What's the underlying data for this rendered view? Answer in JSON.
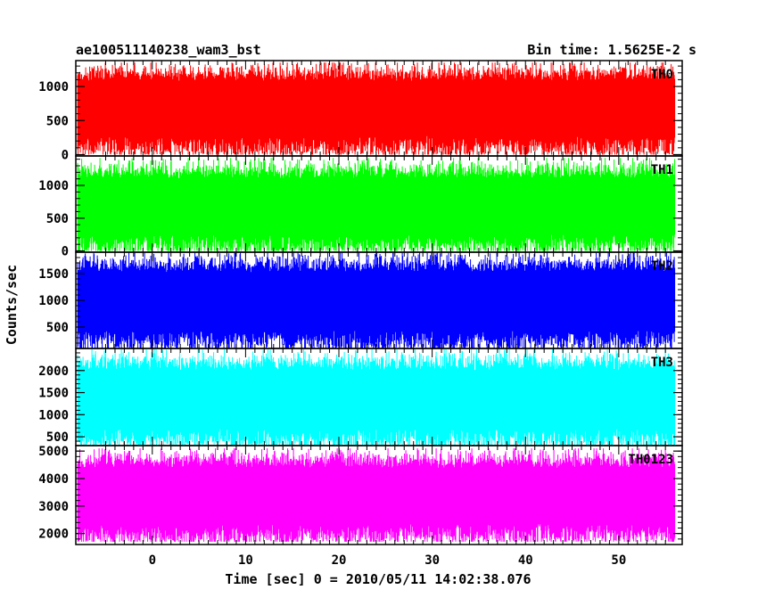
{
  "chart_data": {
    "type": "line",
    "title_left": "ae100511140238_wam3_bst",
    "title_right": "Bin time: 1.5625E-2 s",
    "xlabel": "Time [sec] 0 = 2010/05/11 14:02:38.076",
    "ylabel": "Counts/sec",
    "xlim": [
      -8.2,
      56.8
    ],
    "x_data_range": [
      -8.0,
      56.0
    ],
    "x_ticks": [
      0,
      10,
      20,
      30,
      40,
      50
    ],
    "x_tick_labels": [
      "0",
      "10",
      "20",
      "30",
      "40",
      "50"
    ],
    "grid": false,
    "panels": [
      {
        "name": "TH0",
        "color": "#ff0000",
        "ylim": [
          -20,
          1380
        ],
        "y_ticks": [
          0,
          500,
          1000
        ],
        "y_tick_labels": [
          "0",
          "500",
          "1000"
        ],
        "approx_min": 0,
        "approx_max": 1350,
        "approx_mean": 650
      },
      {
        "name": "TH1",
        "color": "#00ff00",
        "ylim": [
          -20,
          1450
        ],
        "y_ticks": [
          0,
          500,
          1000
        ],
        "y_tick_labels": [
          "0",
          "500",
          "1000"
        ],
        "approx_min": 0,
        "approx_max": 1420,
        "approx_mean": 650
      },
      {
        "name": "TH2",
        "color": "#0000ff",
        "ylim": [
          100,
          1900
        ],
        "y_ticks": [
          500,
          1000,
          1500
        ],
        "y_tick_labels": [
          "500",
          "1000",
          "1500"
        ],
        "approx_min": 100,
        "approx_max": 1900,
        "approx_mean": 950
      },
      {
        "name": "TH3",
        "color": "#00ffff",
        "ylim": [
          300,
          2500
        ],
        "y_ticks": [
          500,
          1000,
          1500,
          2000
        ],
        "y_tick_labels": [
          "500",
          "1000",
          "1500",
          "2000"
        ],
        "approx_min": 300,
        "approx_max": 2500,
        "approx_mean": 1300
      },
      {
        "name": "TH0123",
        "color": "#ff00ff",
        "ylim": [
          1600,
          5200
        ],
        "y_ticks": [
          2000,
          3000,
          4000,
          5000
        ],
        "y_tick_labels": [
          "2000",
          "3000",
          "4000",
          "5000"
        ],
        "approx_min": 1700,
        "approx_max": 5100,
        "approx_mean": 3300
      }
    ]
  }
}
